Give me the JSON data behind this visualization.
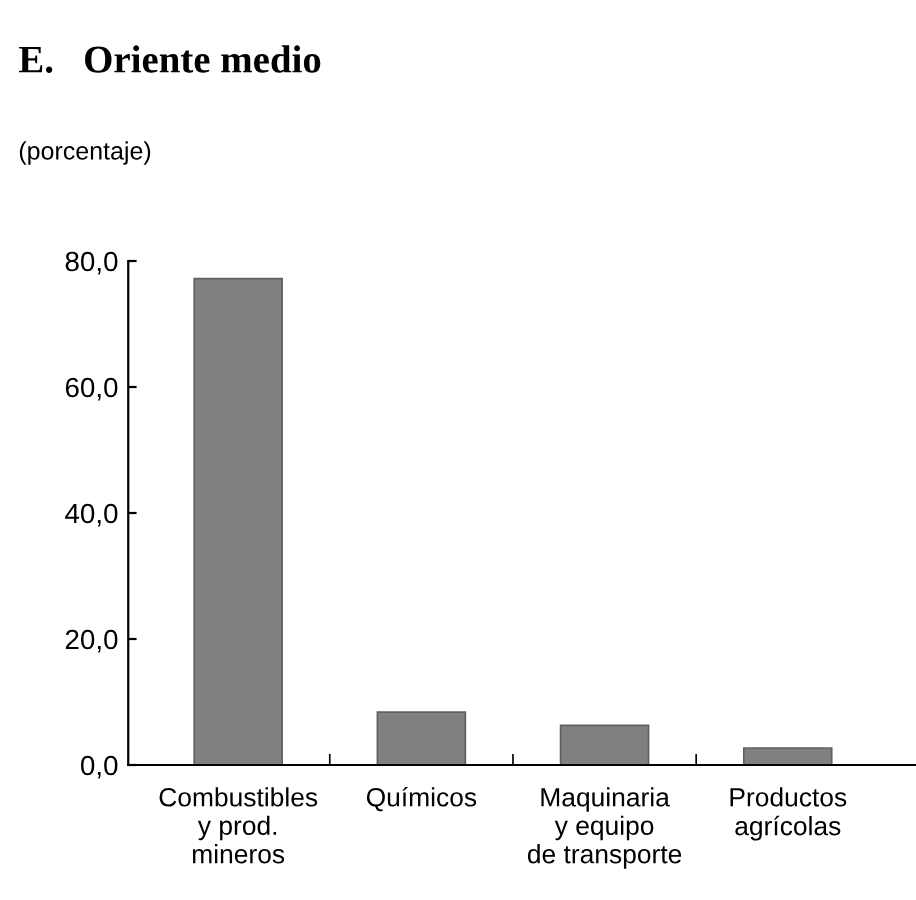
{
  "chart_data": {
    "type": "bar",
    "title": "E.   Oriente medio",
    "subtitle": "(porcentaje)",
    "categories": [
      "Combustibles\ny prod.\nmineros",
      "Químicos",
      "Maquinaria\ny equipo\nde transporte",
      "Productos\nagrícolas"
    ],
    "values": [
      77.2,
      8.4,
      6.3,
      2.7
    ],
    "color": "#808080",
    "ylim": [
      0,
      80
    ],
    "yticks": [
      {
        "value": 0,
        "label": "0,0"
      },
      {
        "value": 20,
        "label": "20,0"
      },
      {
        "value": 40,
        "label": "40,0"
      },
      {
        "value": 60,
        "label": "60,0"
      },
      {
        "value": 80,
        "label": "80,0"
      }
    ],
    "grid": false,
    "legend": false
  }
}
